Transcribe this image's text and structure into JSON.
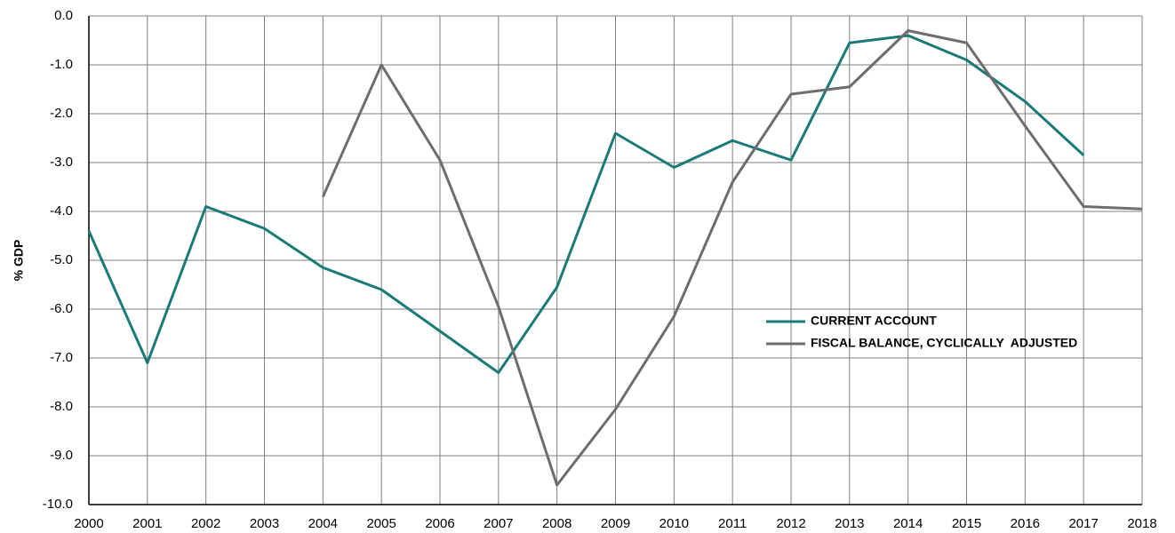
{
  "chart_data": {
    "type": "line",
    "y_label": "% GDP",
    "categories": [
      "2000",
      "2001",
      "2002",
      "2003",
      "2004",
      "2005",
      "2006",
      "2007",
      "2008",
      "2009",
      "2010",
      "2011",
      "2012",
      "2013",
      "2014",
      "2015",
      "2016",
      "2017",
      "2018"
    ],
    "series": [
      {
        "name": "CURRENT ACCOUNT",
        "color": "#1a7a78",
        "values": [
          -4.4,
          -7.1,
          -3.9,
          -4.35,
          -5.15,
          -5.6,
          -6.45,
          -7.3,
          -5.55,
          -2.4,
          -3.1,
          -2.55,
          -2.95,
          -0.55,
          -0.4,
          -0.9,
          -1.75,
          -2.85,
          null
        ]
      },
      {
        "name": "FISCAL BALANCE, CYCLICALLY  ADJUSTED",
        "color": "#6d6d6d",
        "values": [
          null,
          null,
          null,
          null,
          -3.7,
          -1.0,
          -2.95,
          -5.95,
          -9.6,
          -8.05,
          -6.15,
          -3.4,
          -1.6,
          -1.45,
          -0.3,
          -0.55,
          -2.25,
          -3.9,
          -3.95
        ]
      }
    ],
    "ylim": [
      -10,
      0
    ],
    "yticks": [
      {
        "value": -10,
        "label": "-10.0"
      },
      {
        "value": -9,
        "label": "-9.0"
      },
      {
        "value": -8,
        "label": "-8.0"
      },
      {
        "value": -7,
        "label": "-7.0"
      },
      {
        "value": -6,
        "label": "-6.0"
      },
      {
        "value": -5,
        "label": "-5.0"
      },
      {
        "value": -4,
        "label": "-4.0"
      },
      {
        "value": -3,
        "label": "-3.0"
      },
      {
        "value": -2,
        "label": "-2.0"
      },
      {
        "value": -1,
        "label": "-1.0"
      },
      {
        "value": 0,
        "label": "0.0"
      }
    ],
    "grid": true
  }
}
